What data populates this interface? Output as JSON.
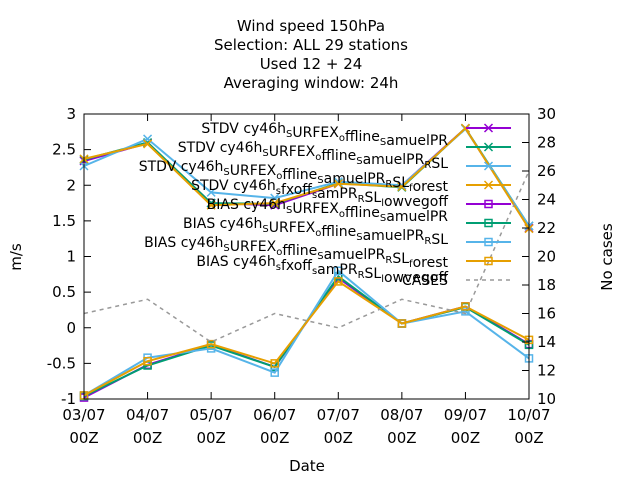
{
  "chart_data": {
    "type": "line",
    "title_lines": [
      "Wind speed 150hPa",
      "Selection: ALL      29 stations",
      "Used  12 + 24",
      "Averaging window: 24h"
    ],
    "xlabel": "Date",
    "ylabel": "m/s",
    "y2label": "No cases",
    "categories": [
      "03/07 00Z",
      "04/07 00Z",
      "05/07 00Z",
      "06/07 00Z",
      "07/07 00Z",
      "08/07 00Z",
      "09/07 00Z",
      "10/07 00Z"
    ],
    "x_ticks": [
      {
        "date": "03/07",
        "hour": "00Z"
      },
      {
        "date": "04/07",
        "hour": "00Z"
      },
      {
        "date": "05/07",
        "hour": "00Z"
      },
      {
        "date": "06/07",
        "hour": "00Z"
      },
      {
        "date": "07/07",
        "hour": "00Z"
      },
      {
        "date": "08/07",
        "hour": "00Z"
      },
      {
        "date": "09/07",
        "hour": "00Z"
      },
      {
        "date": "10/07",
        "hour": "00Z"
      }
    ],
    "ylim": [
      -1,
      3
    ],
    "y_ticks": [
      "-1",
      "-0.5",
      "0",
      "0.5",
      "1",
      "1.5",
      "2",
      "2.5",
      "3"
    ],
    "y2lim": [
      10,
      30
    ],
    "y2_ticks": [
      "10",
      "12",
      "14",
      "16",
      "18",
      "20",
      "22",
      "24",
      "26",
      "28",
      "30"
    ],
    "grid": false,
    "legend_position": "top-right",
    "series": [
      {
        "name": "STDV cy46h_S URFEX_o ffline_S amuelPR",
        "legend": [
          {
            "t": "STDV cy46h"
          },
          {
            "t": "S",
            "s": 1
          },
          {
            "t": "URFEX"
          },
          {
            "t": "o",
            "s": 1
          },
          {
            "t": "ffline"
          },
          {
            "t": "S",
            "s": 1
          },
          {
            "t": "amuelPR"
          }
        ],
        "color": "#9400d3",
        "marker": "x",
        "axis": "y1",
        "values": [
          2.34,
          2.59,
          1.75,
          1.72,
          2.02,
          2.0,
          2.8,
          1.4
        ]
      },
      {
        "name": "STDV cy46h_S URFEX_o ffline_S amuelPR_R SL",
        "legend": [
          {
            "t": "STDV cy46h"
          },
          {
            "t": "S",
            "s": 1
          },
          {
            "t": "URFEX"
          },
          {
            "t": "o",
            "s": 1
          },
          {
            "t": "ffline"
          },
          {
            "t": "S",
            "s": 1
          },
          {
            "t": "amuelPR"
          },
          {
            "t": "R",
            "s": 1
          },
          {
            "t": "SL"
          }
        ],
        "color": "#009e73",
        "marker": "x",
        "axis": "y1",
        "values": [
          2.36,
          2.6,
          1.75,
          1.74,
          2.03,
          1.97,
          2.8,
          1.43
        ]
      },
      {
        "name": "STDV cy46h_S URFEX_o ffline_S amuelPR_R SL_f orest",
        "legend": [
          {
            "t": "STDV cy46h"
          },
          {
            "t": "S",
            "s": 1
          },
          {
            "t": "URFEX"
          },
          {
            "t": "o",
            "s": 1
          },
          {
            "t": "ffline"
          },
          {
            "t": "S",
            "s": 1
          },
          {
            "t": "amuelPR"
          },
          {
            "t": "R",
            "s": 1
          },
          {
            "t": "SL"
          },
          {
            "t": "f",
            "s": 1
          },
          {
            "t": "orest"
          }
        ],
        "color": "#56b4e9",
        "marker": "x",
        "axis": "y1",
        "values": [
          2.27,
          2.65,
          1.9,
          1.82,
          2.05,
          2.0,
          2.79,
          1.43
        ]
      },
      {
        "name": "STDV cy46h_s fxoff_s amPR_R SL_l owvegoff",
        "legend": [
          {
            "t": "STDV cy46h"
          },
          {
            "t": "s",
            "s": 1
          },
          {
            "t": "fxoff"
          },
          {
            "t": "s",
            "s": 1
          },
          {
            "t": "amPR"
          },
          {
            "t": "R",
            "s": 1
          },
          {
            "t": "SL"
          },
          {
            "t": "l",
            "s": 1
          },
          {
            "t": "owvegoff"
          }
        ],
        "color": "#e69f00",
        "marker": "x",
        "axis": "y1",
        "values": [
          2.37,
          2.58,
          1.72,
          1.75,
          2.02,
          1.98,
          2.8,
          1.39
        ]
      },
      {
        "name": "BIAS cy46h_S URFEX_o ffline_S amuelPR",
        "legend": [
          {
            "t": "BIAS cy46h"
          },
          {
            "t": "S",
            "s": 1
          },
          {
            "t": "URFEX"
          },
          {
            "t": "o",
            "s": 1
          },
          {
            "t": "ffline"
          },
          {
            "t": "S",
            "s": 1
          },
          {
            "t": "amuelPR"
          }
        ],
        "color": "#9400d3",
        "marker": "square",
        "axis": "y1",
        "values": [
          -0.98,
          -0.52,
          -0.24,
          -0.55,
          0.7,
          0.06,
          0.3,
          -0.23
        ]
      },
      {
        "name": "BIAS cy46h_S URFEX_o ffline_S amuelPR_R SL",
        "legend": [
          {
            "t": "BIAS cy46h"
          },
          {
            "t": "S",
            "s": 1
          },
          {
            "t": "URFEX"
          },
          {
            "t": "o",
            "s": 1
          },
          {
            "t": "ffline"
          },
          {
            "t": "S",
            "s": 1
          },
          {
            "t": "amuelPR"
          },
          {
            "t": "R",
            "s": 1
          },
          {
            "t": "SL"
          }
        ],
        "color": "#009e73",
        "marker": "square",
        "axis": "y1",
        "values": [
          -0.96,
          -0.53,
          -0.25,
          -0.55,
          0.72,
          0.06,
          0.29,
          -0.24
        ]
      },
      {
        "name": "BIAS cy46h_S URFEX_o ffline_S amuelPR_R SL_f orest",
        "legend": [
          {
            "t": "BIAS cy46h"
          },
          {
            "t": "S",
            "s": 1
          },
          {
            "t": "URFEX"
          },
          {
            "t": "o",
            "s": 1
          },
          {
            "t": "ffline"
          },
          {
            "t": "S",
            "s": 1
          },
          {
            "t": "amuelPR"
          },
          {
            "t": "R",
            "s": 1
          },
          {
            "t": "SL"
          },
          {
            "t": "f",
            "s": 1
          },
          {
            "t": "orest"
          }
        ],
        "color": "#56b4e9",
        "marker": "square",
        "axis": "y1",
        "values": [
          -0.95,
          -0.42,
          -0.29,
          -0.63,
          0.8,
          0.06,
          0.23,
          -0.43
        ]
      },
      {
        "name": "BIAS cy46h_s fxoff_s amPR_R SL_l owvegoff",
        "legend": [
          {
            "t": "BIAS cy46h"
          },
          {
            "t": "s",
            "s": 1
          },
          {
            "t": "fxoff"
          },
          {
            "t": "s",
            "s": 1
          },
          {
            "t": "amPR"
          },
          {
            "t": "R",
            "s": 1
          },
          {
            "t": "SL"
          },
          {
            "t": "l",
            "s": 1
          },
          {
            "t": "owvegoff"
          }
        ],
        "color": "#e69f00",
        "marker": "square",
        "axis": "y1",
        "values": [
          -0.95,
          -0.47,
          -0.23,
          -0.5,
          0.65,
          0.06,
          0.3,
          -0.17
        ]
      },
      {
        "name": "CASES",
        "legend": [
          {
            "t": "CASES"
          }
        ],
        "color": "#999999",
        "marker": "none",
        "dashed": true,
        "axis": "y2",
        "values": [
          16,
          17,
          14,
          16,
          15,
          17,
          16,
          26
        ]
      }
    ]
  }
}
